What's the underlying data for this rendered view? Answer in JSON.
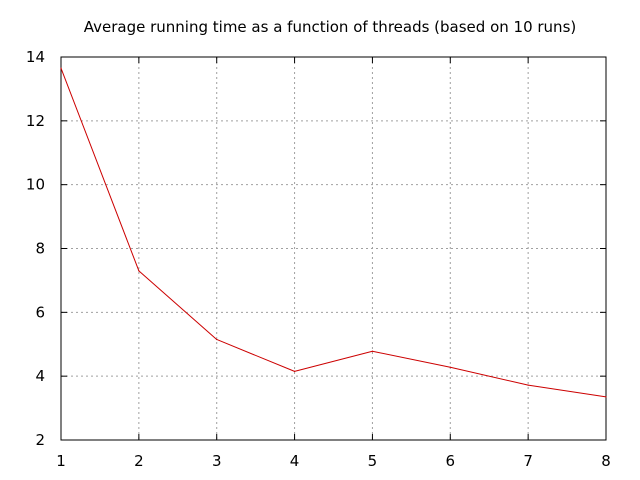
{
  "chart_data": {
    "type": "line",
    "title": "Average running time as a function of threads (based on 10 runs)",
    "xlabel": "",
    "ylabel": "",
    "xlim": [
      1,
      8
    ],
    "ylim": [
      2,
      14
    ],
    "grid": true,
    "x_ticks": [
      "1",
      "2",
      "3",
      "4",
      "5",
      "6",
      "7",
      "8"
    ],
    "y_ticks": [
      "2",
      "4",
      "6",
      "8",
      "10",
      "12",
      "14"
    ],
    "x_tick_values": [
      1,
      2,
      3,
      4,
      5,
      6,
      7,
      8
    ],
    "y_tick_values": [
      2,
      4,
      6,
      8,
      10,
      12,
      14
    ],
    "series": [
      {
        "color": "#cc0000",
        "x": [
          1,
          2,
          3,
          4,
          5,
          6,
          7,
          8
        ],
        "y": [
          13.65,
          7.3,
          5.15,
          4.15,
          4.78,
          4.28,
          3.72,
          3.35
        ]
      }
    ]
  }
}
